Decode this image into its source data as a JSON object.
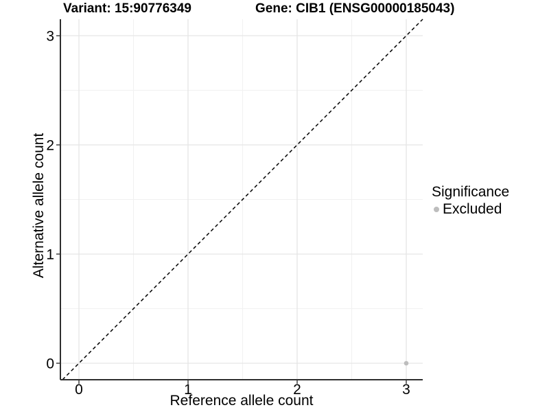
{
  "titles": {
    "left": "Variant: 15:90776349",
    "right": "Gene: CIB1 (ENSG00000185043)"
  },
  "chart_data": {
    "type": "scatter",
    "title_left": "Variant: 15:90776349",
    "title_right": "Gene: CIB1 (ENSG00000185043)",
    "xlabel": "Reference allele count",
    "ylabel": "Alternative allele count",
    "x_ticks": [
      0,
      1,
      2,
      3
    ],
    "y_ticks": [
      0,
      1,
      2,
      3
    ],
    "x_minor_ticks": [
      0.5,
      1.5,
      2.5
    ],
    "y_minor_ticks": [
      0.5,
      1.5,
      2.5
    ],
    "xlim": [
      -0.17,
      3.151
    ],
    "ylim": [
      -0.151,
      3.151
    ],
    "grid": "major+minor",
    "reference_line": {
      "style": "dashed",
      "slope": 1,
      "intercept": 0,
      "color": "#000000"
    },
    "series": [
      {
        "name": "Excluded",
        "color": "#bdbdbd",
        "points": [
          {
            "x": 3,
            "y": 0
          }
        ]
      }
    ],
    "legend": {
      "title": "Significance",
      "position": "right",
      "entries": [
        {
          "label": "Excluded",
          "color": "#bdbdbd",
          "marker": "circle"
        }
      ]
    },
    "colors": {
      "grid_major": "#e5e5e5",
      "grid_minor": "#f1f1f1",
      "axis_line": "#2e2e2e",
      "tick_mark": "#333333",
      "text": "#000000",
      "point": "#bdbdbd"
    }
  }
}
